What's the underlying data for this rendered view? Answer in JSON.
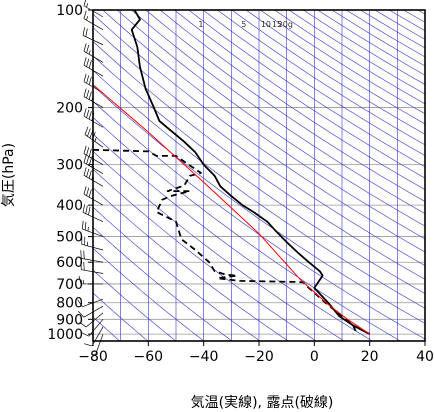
{
  "chart_data": {
    "type": "line",
    "xlabel": "気温(実線), 露点(破線)",
    "ylabel": "気圧(hPa)",
    "x_ticks": [
      -80,
      -60,
      -40,
      -20,
      0,
      20,
      40
    ],
    "x_tick_labels": [
      "−80",
      "−60",
      "−40",
      "−20",
      "0",
      "20",
      "40"
    ],
    "y_ticks": [
      100,
      200,
      300,
      400,
      500,
      600,
      700,
      800,
      900,
      1000
    ],
    "y_tick_labels": [
      "100",
      "200",
      "300",
      "400",
      "500",
      "600",
      "700",
      "800",
      "900",
      "1000"
    ],
    "xlim": [
      -80,
      40
    ],
    "ylim": [
      1050,
      100
    ],
    "y_scale": "log",
    "grid": true,
    "mixing_ratio_labels": [
      {
        "label": "1",
        "t": -41
      },
      {
        "label": "5",
        "t": -25.5
      },
      {
        "label": "10",
        "t": -17.5
      },
      {
        "label": "15",
        "t": -13.5
      },
      {
        "label": "20g",
        "t": -10.5
      }
    ],
    "series": [
      {
        "style": "solid",
        "color": "#000000",
        "points": [
          [
            -65,
            100
          ],
          [
            -63,
            107
          ],
          [
            -66,
            115
          ],
          [
            -64,
            130
          ],
          [
            -63,
            150
          ],
          [
            -61,
            175
          ],
          [
            -58,
            200
          ],
          [
            -56,
            220
          ],
          [
            -52,
            235
          ],
          [
            -47,
            255
          ],
          [
            -43,
            275
          ],
          [
            -40,
            300
          ],
          [
            -36,
            325
          ],
          [
            -34,
            350
          ],
          [
            -30,
            375
          ],
          [
            -26,
            400
          ],
          [
            -22,
            420
          ],
          [
            -17,
            450
          ],
          [
            -14,
            480
          ],
          [
            -10,
            520
          ],
          [
            -6,
            560
          ],
          [
            -2,
            600
          ],
          [
            2,
            640
          ],
          [
            3,
            660
          ],
          [
            1,
            700
          ],
          [
            0,
            720
          ],
          [
            5,
            800
          ],
          [
            9,
            880
          ],
          [
            14,
            940
          ],
          [
            20,
            1000
          ]
        ]
      },
      {
        "style": "dashed",
        "color": "#000000",
        "points": [
          [
            -80,
            270
          ],
          [
            -60,
            273
          ],
          [
            -57,
            282
          ],
          [
            -50,
            282
          ],
          [
            -41,
            318
          ],
          [
            -45,
            325
          ],
          [
            -47,
            348
          ],
          [
            -53,
            362
          ],
          [
            -45,
            362
          ],
          [
            -52,
            375
          ],
          [
            -55,
            385
          ],
          [
            -57,
            420
          ],
          [
            -50,
            450
          ],
          [
            -49,
            480
          ],
          [
            -48,
            510
          ],
          [
            -43,
            550
          ],
          [
            -38,
            600
          ],
          [
            -36,
            640
          ],
          [
            -32,
            655
          ],
          [
            -28,
            660
          ],
          [
            -35,
            672
          ],
          [
            -27,
            685
          ],
          [
            -15,
            688
          ],
          [
            -7,
            690
          ],
          [
            -4,
            692
          ],
          [
            -2,
            720
          ],
          [
            4,
            800
          ],
          [
            10,
            880
          ],
          [
            14,
            940
          ],
          [
            15,
            980
          ],
          [
            14,
            1000
          ]
        ]
      },
      {
        "style": "solid",
        "color": "#ff0000",
        "points": [
          [
            -80,
            170
          ],
          [
            -60,
            238
          ],
          [
            -40,
            340
          ],
          [
            -20,
            490
          ],
          [
            -5,
            680
          ],
          [
            5,
            810
          ],
          [
            12,
            900
          ],
          [
            20,
            1000
          ]
        ]
      }
    ],
    "wind_barbs": [
      {
        "p": 105,
        "dir": 300,
        "spd": 15
      },
      {
        "p": 115,
        "dir": 300,
        "spd": 15
      },
      {
        "p": 128,
        "dir": 295,
        "spd": 20
      },
      {
        "p": 145,
        "dir": 300,
        "spd": 25
      },
      {
        "p": 160,
        "dir": 300,
        "spd": 30
      },
      {
        "p": 180,
        "dir": 300,
        "spd": 30
      },
      {
        "p": 200,
        "dir": 300,
        "spd": 35
      },
      {
        "p": 230,
        "dir": 300,
        "spd": 40
      },
      {
        "p": 265,
        "dir": 305,
        "spd": 45
      },
      {
        "p": 300,
        "dir": 300,
        "spd": 40
      },
      {
        "p": 320,
        "dir": 300,
        "spd": 40
      },
      {
        "p": 350,
        "dir": 300,
        "spd": 35
      },
      {
        "p": 400,
        "dir": 300,
        "spd": 30
      },
      {
        "p": 450,
        "dir": 295,
        "spd": 30
      },
      {
        "p": 500,
        "dir": 290,
        "spd": 25
      },
      {
        "p": 550,
        "dir": 285,
        "spd": 25
      },
      {
        "p": 600,
        "dir": 280,
        "spd": 20
      },
      {
        "p": 650,
        "dir": 280,
        "spd": 20
      },
      {
        "p": 700,
        "dir": 270,
        "spd": 15
      },
      {
        "p": 780,
        "dir": 250,
        "spd": 10
      },
      {
        "p": 820,
        "dir": 240,
        "spd": 10
      },
      {
        "p": 860,
        "dir": 230,
        "spd": 10
      },
      {
        "p": 900,
        "dir": 220,
        "spd": 10
      },
      {
        "p": 950,
        "dir": 210,
        "spd": 10
      },
      {
        "p": 1000,
        "dir": 200,
        "spd": 5
      }
    ],
    "colors": {
      "isotherm": "#3333cc",
      "dry_adiabat": "#3333cc",
      "grid": "#999999",
      "temperature": "#000000",
      "dewpoint": "#000000",
      "parcel": "#ff0000"
    }
  }
}
